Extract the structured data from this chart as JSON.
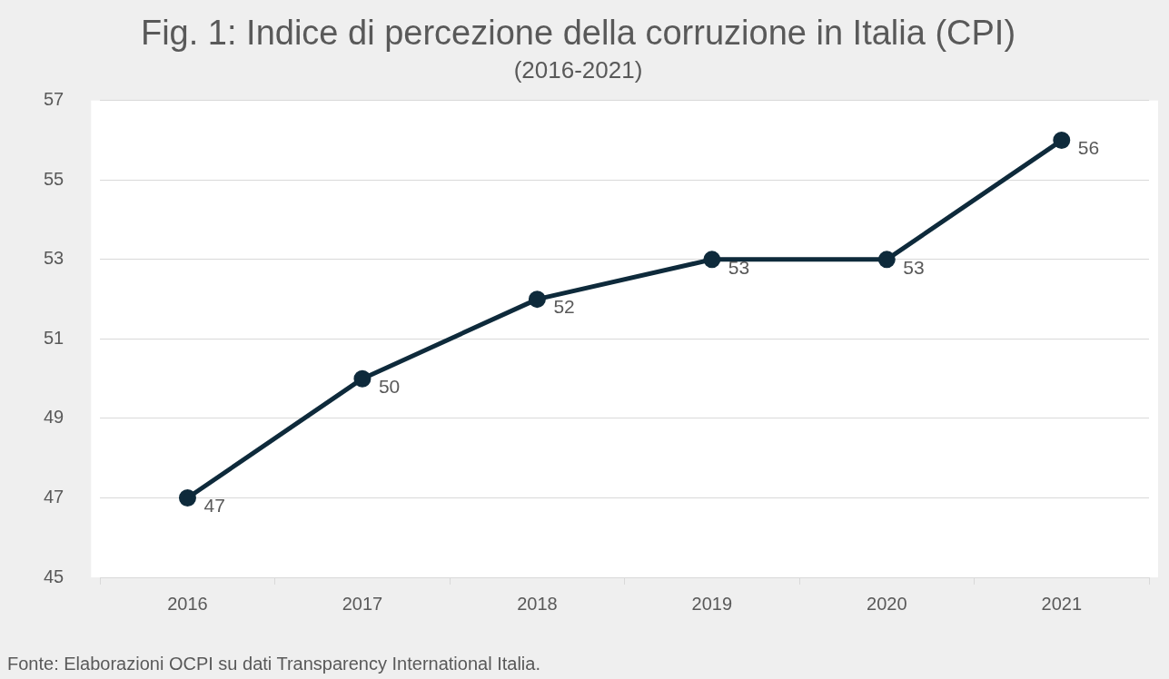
{
  "chart_data": {
    "type": "line",
    "title": "Fig. 1: Indice di percezione della corruzione in Italia (CPI)",
    "subtitle": "(2016-2021)",
    "categories": [
      "2016",
      "2017",
      "2018",
      "2019",
      "2020",
      "2021"
    ],
    "series": [
      {
        "color": "#0e2a3b",
        "values": [
          47,
          50,
          52,
          53,
          53,
          56
        ]
      }
    ],
    "ylim": [
      45,
      57
    ],
    "yticks": [
      45,
      47,
      49,
      51,
      53,
      55,
      57
    ],
    "grid": "y",
    "legend": false,
    "marker": "circle",
    "line_style": "solid",
    "data_labels": true,
    "annotations": [
      "Fonte: Elaborazioni OCPI su dati Transparency International Italia."
    ]
  }
}
